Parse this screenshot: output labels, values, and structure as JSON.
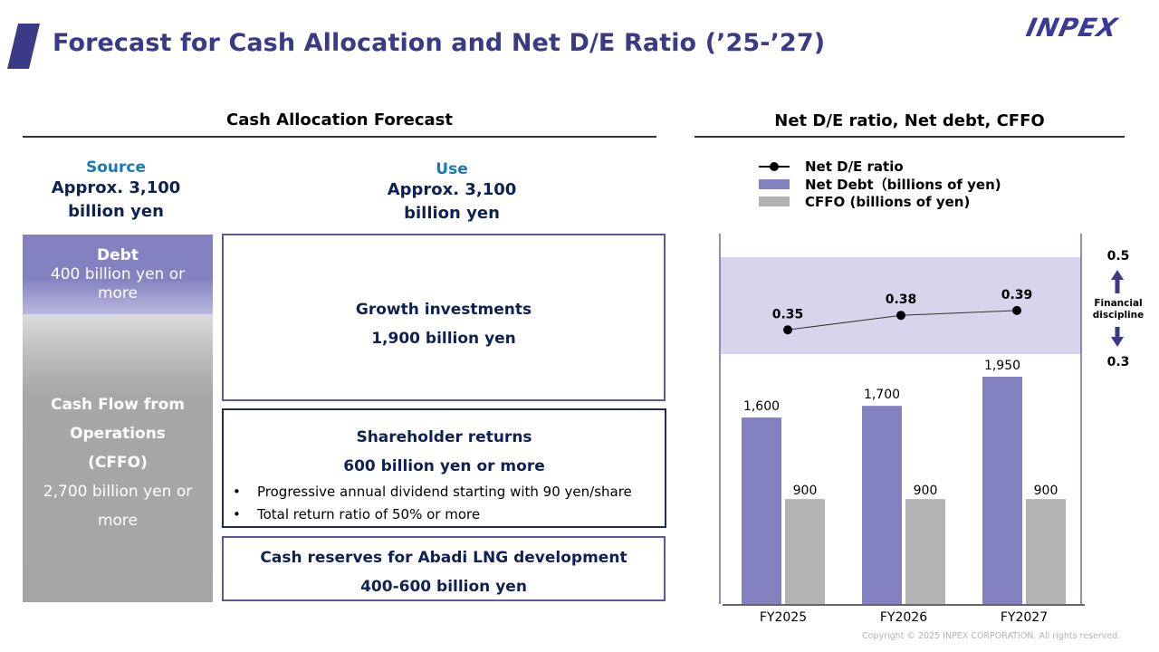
{
  "header": {
    "title": "Forecast for Cash Allocation and Net D/E Ratio (’25-’27)",
    "logo": "INPEX",
    "accent_color": "#3a3a86"
  },
  "cash_allocation": {
    "section_title": "Cash Allocation Forecast",
    "source": {
      "label": "Source",
      "amount_line1": "Approx. 3,100",
      "amount_line2": "billion yen",
      "debt": {
        "title": "Debt",
        "line1": "400 billion yen or",
        "line2": "more"
      },
      "cffo": {
        "line1": "Cash Flow from",
        "line2": "Operations",
        "line3": "(CFFO)",
        "line4": "2,700 billion yen or",
        "line5": "more"
      }
    },
    "use": {
      "label": "Use",
      "amount_line1": "Approx. 3,100",
      "amount_line2": "billion yen",
      "growth": {
        "title": "Growth investments",
        "amount": "1,900 billion yen"
      },
      "shareholder": {
        "title": "Shareholder returns",
        "amount": "600 billion yen or more",
        "bullets": [
          "Progressive annual dividend starting with 90 yen/share",
          "Total return ratio of 50% or more"
        ]
      },
      "abadi": {
        "title": "Cash reserves for Abadi LNG development",
        "amount": "400-600 billion yen"
      }
    }
  },
  "chart_data": {
    "type": "bar",
    "title": "Net D/E ratio, Net debt, CFFO",
    "categories": [
      "FY2025",
      "FY2026",
      "FY2027"
    ],
    "series": [
      {
        "name": "Net Debt（billions of yen)",
        "type": "bar",
        "color": "#8381c0",
        "values": [
          1600,
          1700,
          1950
        ],
        "labels": [
          "1,600",
          "1,700",
          "1,950"
        ]
      },
      {
        "name": "CFFO (billions of yen)",
        "type": "bar",
        "color": "#b3b3b3",
        "values": [
          900,
          900,
          900
        ],
        "labels": [
          "900",
          "900",
          "900"
        ]
      },
      {
        "name": "Net D/E ratio",
        "type": "line",
        "color": "#000000",
        "values": [
          0.35,
          0.38,
          0.39
        ],
        "labels": [
          "0.35",
          "0.38",
          "0.39"
        ]
      }
    ],
    "legend": [
      "Net D/E ratio",
      "Net Debt（billions of yen)",
      "CFFO (billions of yen)"
    ],
    "legend_position": "top-left",
    "bar_ylim": [
      0,
      1950
    ],
    "ratio_band": {
      "low": 0.3,
      "high": 0.5,
      "low_label": "0.3",
      "high_label": "0.5",
      "color": "#d6d5ec",
      "caption_line1": "Financial",
      "caption_line2": "discipline"
    },
    "grid": false,
    "xlabel": "",
    "ylabel": ""
  },
  "footer": {
    "copyright": "Copyright © 2025 INPEX CORPORATION. All rights reserved."
  }
}
